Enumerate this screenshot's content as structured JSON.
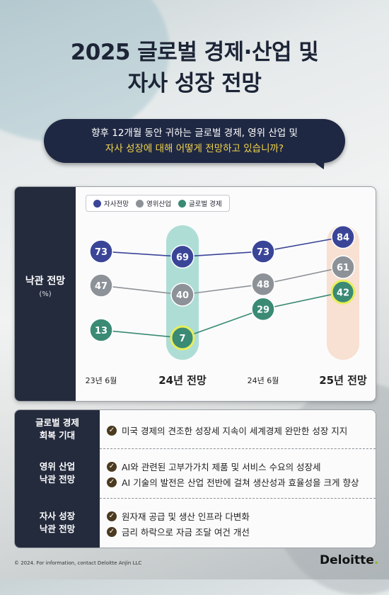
{
  "title_line1": "2025 글로벌 경제·산업 및",
  "title_line2": "자사 성장 전망",
  "question": {
    "line1": "향후 12개월 동안 귀하는 글로벌 경제, 영위 산업 및",
    "line2": "자사 성장에 대해 어떻게 전망하고 있습니까?"
  },
  "chart_side_label": "낙관 전망",
  "chart_side_unit": "(%)",
  "colors": {
    "navy": "#242b3d",
    "company": "#3a4598",
    "industry": "#8d9298",
    "economy": "#3a8a74",
    "highlight": "#e7ee5a"
  },
  "chart_data": {
    "type": "line",
    "categories": [
      "23년 6월",
      "24년 전망",
      "24년 6월",
      "25년 전망"
    ],
    "bold_categories": [
      1,
      3
    ],
    "ylim": [
      0,
      100
    ],
    "series": [
      {
        "name": "자사전망",
        "values": [
          73,
          69,
          73,
          84
        ],
        "color": "#3a4598"
      },
      {
        "name": "영위산업",
        "values": [
          47,
          40,
          48,
          61
        ],
        "color": "#8d9298"
      },
      {
        "name": "글로벌 경제",
        "values": [
          13,
          7,
          29,
          42
        ],
        "color": "#3a8a74"
      }
    ],
    "highlighted_points": [
      {
        "series": 2,
        "index": 1
      },
      {
        "series": 2,
        "index": 3
      }
    ]
  },
  "info_rows": [
    {
      "label": "글로벌 경제\n회복 기대",
      "bullets": [
        "미국 경제의 견조한 성장세 지속이 세계경제 완만한 성장 지지"
      ]
    },
    {
      "label": "영위 산업\n낙관 전망",
      "bullets": [
        "AI와 관련된 고부가가치 제품 및 서비스 수요의 성장세",
        "AI 기술의 발전은 산업 전반에 걸쳐 생산성과 효율성을 크게 향상"
      ]
    },
    {
      "label": "자사 성장\n낙관 전망",
      "bullets": [
        "원자재 공급 및 생산 인프라 다변화",
        "금리 하락으로 자금 조달 여건 개선"
      ]
    }
  ],
  "footer": "© 2024. For information, contact Deloitte Anjin LLC",
  "brand": "Deloitte"
}
